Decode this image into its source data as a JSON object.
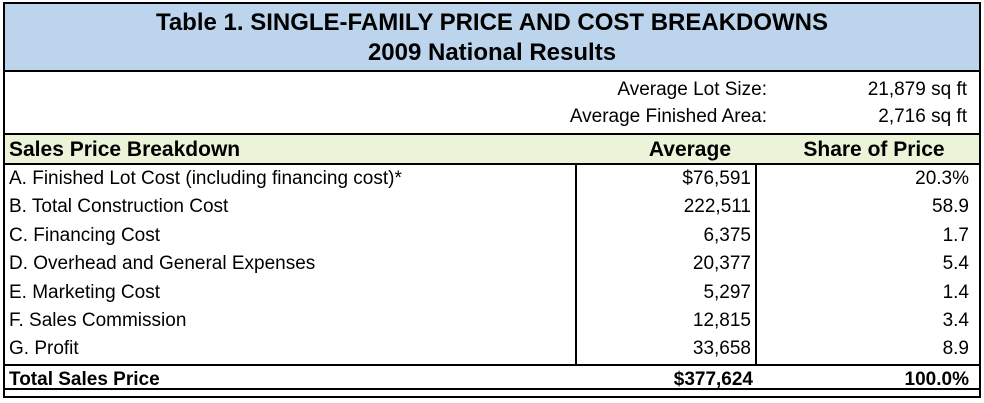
{
  "title": {
    "line1": "Table 1.  SINGLE-FAMILY PRICE AND COST BREAKDOWNS",
    "line2": "2009 National Results"
  },
  "meta": [
    {
      "label": "Average Lot Size:",
      "value": "21,879 sq ft"
    },
    {
      "label": "Average Finished Area:",
      "value": "2,716 sq ft"
    }
  ],
  "table": {
    "headers": {
      "label": "Sales Price Breakdown",
      "average": "Average",
      "share": "Share of Price"
    },
    "rows": [
      {
        "label": "A. Finished Lot Cost (including financing cost)*",
        "average": "$76,591",
        "share": "20.3%"
      },
      {
        "label": "B. Total Construction Cost",
        "average": "222,511",
        "share": "58.9"
      },
      {
        "label": "C. Financing Cost",
        "average": "6,375",
        "share": "1.7"
      },
      {
        "label": "D. Overhead and General Expenses",
        "average": "20,377",
        "share": "5.4"
      },
      {
        "label": "E. Marketing Cost",
        "average": "5,297",
        "share": "1.4"
      },
      {
        "label": "F. Sales Commission",
        "average": "12,815",
        "share": "3.4"
      },
      {
        "label": "G. Profit",
        "average": "33,658",
        "share": "8.9"
      }
    ],
    "total": {
      "label": "Total Sales Price",
      "average": "$377,624",
      "share": "100.0%"
    }
  }
}
